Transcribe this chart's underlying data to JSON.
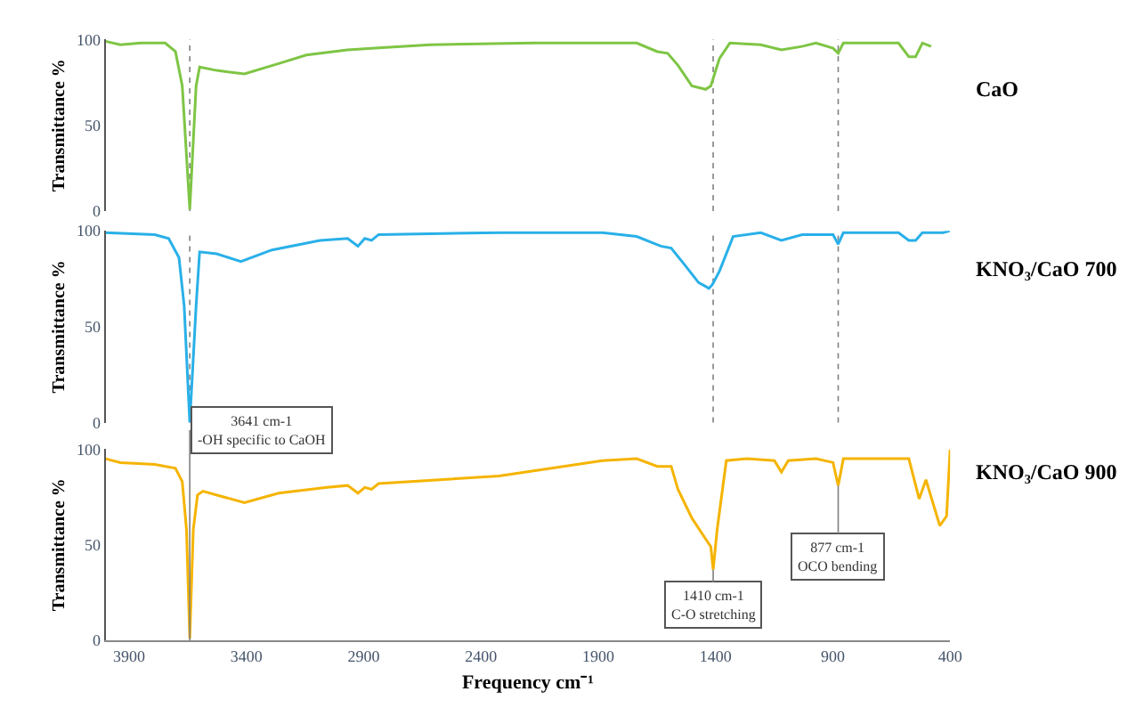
{
  "chart_data": [
    {
      "type": "line",
      "xlim": [
        4000,
        400
      ],
      "ylim": [
        0,
        100
      ],
      "yticks": [
        0,
        50,
        100
      ],
      "ylabel": "Transmittance %",
      "tick_labels": "y",
      "grid": false,
      "ref_lines": [
        {
          "axis": "x",
          "value": 3641,
          "color": "#808080",
          "line_style": "dotted"
        },
        {
          "axis": "x",
          "value": 1410,
          "color": "#808080",
          "line_style": "dotted"
        },
        {
          "axis": "x",
          "value": 877,
          "color": "#808080",
          "line_style": "dotted"
        }
      ],
      "series": [
        {
          "name": "CaO",
          "color": "#7ec544",
          "x": [
            4000,
            3937,
            3849,
            3746,
            3702,
            3673,
            3641,
            3614,
            3599,
            3526,
            3408,
            3262,
            3144,
            2968,
            2851,
            2616,
            2176,
            1736,
            1648,
            1604,
            1560,
            1501,
            1442,
            1420,
            1383,
            1339,
            1207,
            1119,
            1031,
            972,
            899,
            877,
            855,
            620,
            576,
            547,
            518,
            481
          ],
          "values": [
            99,
            97,
            98,
            98,
            93,
            73,
            1,
            73,
            84,
            82,
            80,
            86,
            91,
            94,
            95,
            97,
            98,
            98,
            93,
            92,
            85,
            73,
            71,
            73,
            89,
            98,
            97,
            94,
            96,
            98,
            95,
            92,
            98,
            98,
            90,
            90,
            98,
            96
          ]
        }
      ]
    },
    {
      "type": "line",
      "xlim": [
        4000,
        400
      ],
      "ylim": [
        0,
        100
      ],
      "yticks": [
        0,
        50,
        100
      ],
      "ylabel": "Transmittance %",
      "tick_labels": "y",
      "grid": false,
      "ref_lines": [
        {
          "axis": "x",
          "value": 3641,
          "color": "#808080",
          "line_style": "dotted"
        },
        {
          "axis": "x",
          "value": 1410,
          "color": "#808080",
          "line_style": "dotted"
        },
        {
          "axis": "x",
          "value": 877,
          "color": "#808080",
          "line_style": "dotted"
        }
      ],
      "series": [
        {
          "name": "KNO₃/CaO 700",
          "color": "#29b0e8",
          "x": [
            4000,
            3790,
            3731,
            3687,
            3665,
            3641,
            3614,
            3599,
            3526,
            3423,
            3291,
            3086,
            2968,
            2924,
            2895,
            2866,
            2836,
            2323,
            1882,
            1736,
            1633,
            1589,
            1530,
            1472,
            1442,
            1428,
            1413,
            1383,
            1325,
            1207,
            1119,
            1031,
            899,
            877,
            855,
            620,
            576,
            547,
            518,
            430,
            400
          ],
          "values": [
            99,
            98,
            96,
            86,
            61,
            0,
            61,
            89,
            88,
            84,
            90,
            95,
            96,
            92,
            96,
            95,
            98,
            99,
            99,
            97,
            92,
            91,
            82,
            73,
            71,
            70,
            72,
            79,
            97,
            99,
            95,
            98,
            98,
            93,
            99,
            99,
            95,
            95,
            99,
            99,
            100
          ]
        }
      ]
    },
    {
      "type": "line",
      "xlim": [
        4000,
        400
      ],
      "ylim": [
        0,
        100
      ],
      "yticks": [
        0,
        50,
        100
      ],
      "xticks": [
        3900,
        3400,
        2900,
        2400,
        1900,
        1400,
        900,
        400
      ],
      "xlabel": "Frequency cm⁻¹",
      "ylabel": "Transmittance %",
      "grid": false,
      "annotations": [
        {
          "text": "3641 cm-1\n-OH specific to CaOH",
          "x": 3641,
          "y": 0
        },
        {
          "text": "1410 cm-1\nC-O stretching",
          "x": 1410,
          "y": 37
        },
        {
          "text": "877 cm-1\nOCO bending",
          "x": 877,
          "y": 81
        }
      ],
      "series": [
        {
          "name": "KNO₃/CaO 900",
          "color": "#f5b400",
          "x": [
            4000,
            3937,
            3790,
            3702,
            3673,
            3655,
            3641,
            3626,
            3608,
            3585,
            3408,
            3262,
            3056,
            2968,
            2924,
            2895,
            2866,
            2836,
            2323,
            1882,
            1736,
            1648,
            1589,
            1560,
            1501,
            1442,
            1420,
            1410,
            1393,
            1354,
            1266,
            1149,
            1119,
            1090,
            972,
            899,
            877,
            855,
            576,
            532,
            503,
            444,
            415,
            400
          ],
          "values": [
            95,
            93,
            92,
            90,
            83,
            58,
            1,
            58,
            76,
            78,
            72,
            77,
            80,
            81,
            77,
            80,
            79,
            82,
            86,
            94,
            95,
            91,
            91,
            79,
            64,
            53,
            49,
            37,
            58,
            94,
            95,
            94,
            88,
            94,
            95,
            93,
            81,
            95,
            95,
            74,
            84,
            60,
            65,
            100
          ]
        }
      ]
    }
  ]
}
